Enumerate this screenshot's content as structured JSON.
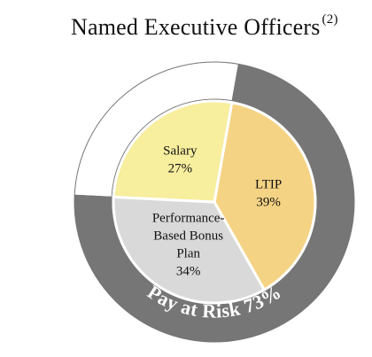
{
  "chart_data": {
    "type": "pie",
    "title": "Named Executive Officers",
    "title_note": "(2)",
    "slices": [
      {
        "label": "Salary",
        "value": 27,
        "value_label": "27%",
        "color": "#f7ee9e"
      },
      {
        "label": "LTIP",
        "value": 39,
        "value_label": "39%",
        "color": "#f5d384"
      },
      {
        "label": "Performance-Based Bonus Plan",
        "label_lines": [
          "Performance-",
          "Based Bonus",
          "Plan"
        ],
        "value": 34,
        "value_label": "34%",
        "color": "#d9d9d9"
      }
    ],
    "outer_ring": {
      "label": "Pay at Risk 73%",
      "value": 73,
      "color": "#767676",
      "remainder_color": "#ffffff"
    },
    "legend": "none"
  }
}
